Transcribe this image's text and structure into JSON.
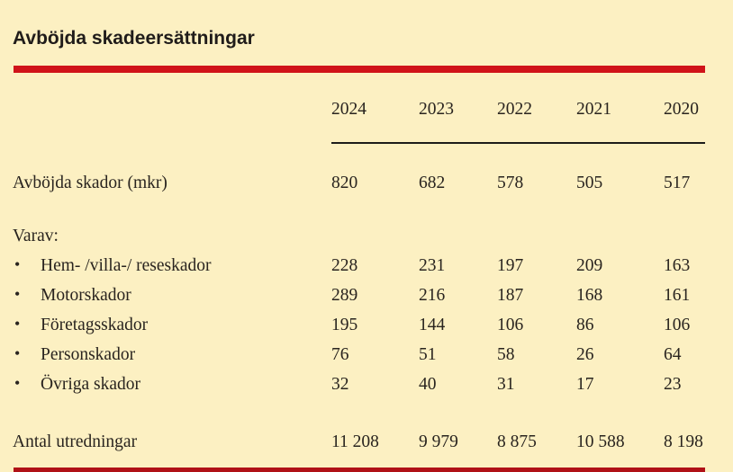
{
  "page": {
    "background_color": "#fcf0c2",
    "accent_red": "#d01319",
    "bottom_rule_red": "#b01117",
    "text_color": "#29241f"
  },
  "header": {
    "title": "Avböjda skadeersättningar"
  },
  "table": {
    "columns": [
      "2024",
      "2023",
      "2022",
      "2021",
      "2020"
    ],
    "rows": [
      {
        "type": "data",
        "label": "Avböjda skador (mkr)",
        "values": [
          "820",
          "682",
          "578",
          "505",
          "517"
        ]
      },
      {
        "type": "section",
        "label": "Varav:",
        "values": []
      },
      {
        "type": "bullet",
        "label": "Hem- /villa-/ reseskador",
        "values": [
          "228",
          "231",
          "197",
          "209",
          "163"
        ]
      },
      {
        "type": "bullet",
        "label": "Motorskador",
        "values": [
          "289",
          "216",
          "187",
          "168",
          "161"
        ]
      },
      {
        "type": "bullet",
        "label": "Företagsskador",
        "values": [
          "195",
          "144",
          "106",
          "86",
          "106"
        ]
      },
      {
        "type": "bullet",
        "label": "Personskador",
        "values": [
          "76",
          "51",
          "58",
          "26",
          "64"
        ]
      },
      {
        "type": "bullet",
        "label": "Övriga skador",
        "values": [
          "32",
          "40",
          "31",
          "17",
          "23"
        ]
      },
      {
        "type": "data",
        "label": "Antal utredningar",
        "values": [
          "11 208",
          "9 979",
          "8 875",
          "10 588",
          "8 198"
        ]
      }
    ],
    "bullet_glyph": "•"
  }
}
